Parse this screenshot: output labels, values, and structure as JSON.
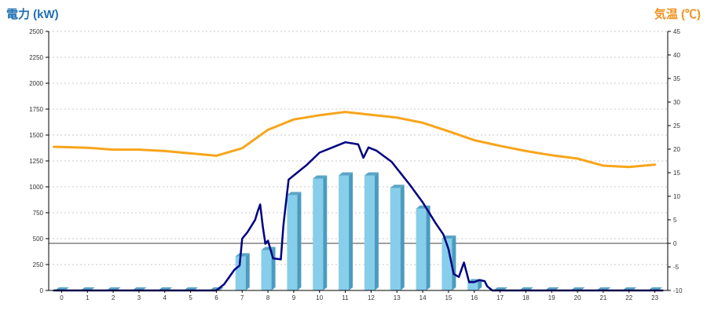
{
  "chart_data": {
    "type": "bar",
    "y_left_label": "電力 (kW)",
    "y_right_label": "気温 (℃)",
    "categories": [
      "0",
      "1",
      "2",
      "3",
      "4",
      "5",
      "6",
      "7",
      "8",
      "9",
      "10",
      "11",
      "12",
      "13",
      "14",
      "15",
      "16",
      "17",
      "18",
      "19",
      "20",
      "21",
      "22",
      "23"
    ],
    "y_left_ticks": [
      "0",
      "250",
      "500",
      "750",
      "1000",
      "1250",
      "1500",
      "1750",
      "2000",
      "2250",
      "2500"
    ],
    "y_right_ticks": [
      "-10",
      "-5",
      "0",
      "5",
      "10",
      "15",
      "20",
      "25",
      "30",
      "35",
      "40",
      "45"
    ],
    "y_left_lim": [
      0,
      2500
    ],
    "y_right_lim": [
      -10,
      45
    ],
    "grid": true,
    "series": [
      {
        "type": "bar",
        "axis": "left",
        "color": "#87ceeb",
        "values": [
          0,
          0,
          0,
          0,
          0,
          0,
          0,
          330,
          390,
          920,
          1080,
          1110,
          1110,
          990,
          790,
          500,
          80,
          0,
          0,
          0,
          0,
          0,
          0,
          0
        ]
      },
      {
        "type": "line",
        "axis": "left",
        "color": "#000080",
        "points": [
          [
            -0.3,
            0
          ],
          [
            6,
            0
          ],
          [
            6.3,
            60
          ],
          [
            6.7,
            200
          ],
          [
            6.9,
            240
          ],
          [
            7.0,
            500
          ],
          [
            7.2,
            560
          ],
          [
            7.5,
            680
          ],
          [
            7.6,
            760
          ],
          [
            7.7,
            830
          ],
          [
            7.8,
            620
          ],
          [
            7.9,
            450
          ],
          [
            8.0,
            480
          ],
          [
            8.2,
            310
          ],
          [
            8.5,
            300
          ],
          [
            8.6,
            630
          ],
          [
            8.8,
            1070
          ],
          [
            9.0,
            1110
          ],
          [
            9.5,
            1210
          ],
          [
            10.0,
            1330
          ],
          [
            10.5,
            1380
          ],
          [
            11.0,
            1430
          ],
          [
            11.5,
            1410
          ],
          [
            11.7,
            1280
          ],
          [
            11.9,
            1380
          ],
          [
            12.2,
            1350
          ],
          [
            12.8,
            1240
          ],
          [
            13.5,
            1020
          ],
          [
            14.0,
            850
          ],
          [
            14.5,
            650
          ],
          [
            14.8,
            540
          ],
          [
            15.0,
            400
          ],
          [
            15.2,
            160
          ],
          [
            15.4,
            130
          ],
          [
            15.6,
            270
          ],
          [
            15.8,
            80
          ],
          [
            16.0,
            80
          ],
          [
            16.2,
            100
          ],
          [
            16.4,
            90
          ],
          [
            16.5,
            40
          ],
          [
            16.7,
            0
          ],
          [
            23.3,
            0
          ]
        ]
      },
      {
        "type": "line",
        "axis": "right",
        "color": "#f7a51b",
        "points": [
          [
            -0.3,
            20.5
          ],
          [
            1,
            20.3
          ],
          [
            2,
            19.9
          ],
          [
            3,
            19.9
          ],
          [
            4,
            19.6
          ],
          [
            5,
            19.1
          ],
          [
            6,
            18.6
          ],
          [
            7,
            20.2
          ],
          [
            8,
            24.1
          ],
          [
            9,
            26.3
          ],
          [
            10,
            27.2
          ],
          [
            11,
            27.9
          ],
          [
            12,
            27.3
          ],
          [
            13,
            26.7
          ],
          [
            14,
            25.6
          ],
          [
            15,
            23.8
          ],
          [
            16,
            21.9
          ],
          [
            17,
            20.7
          ],
          [
            18,
            19.6
          ],
          [
            19,
            18.7
          ],
          [
            20,
            18.0
          ],
          [
            21,
            16.5
          ],
          [
            22,
            16.2
          ],
          [
            23,
            16.7
          ]
        ]
      }
    ]
  }
}
